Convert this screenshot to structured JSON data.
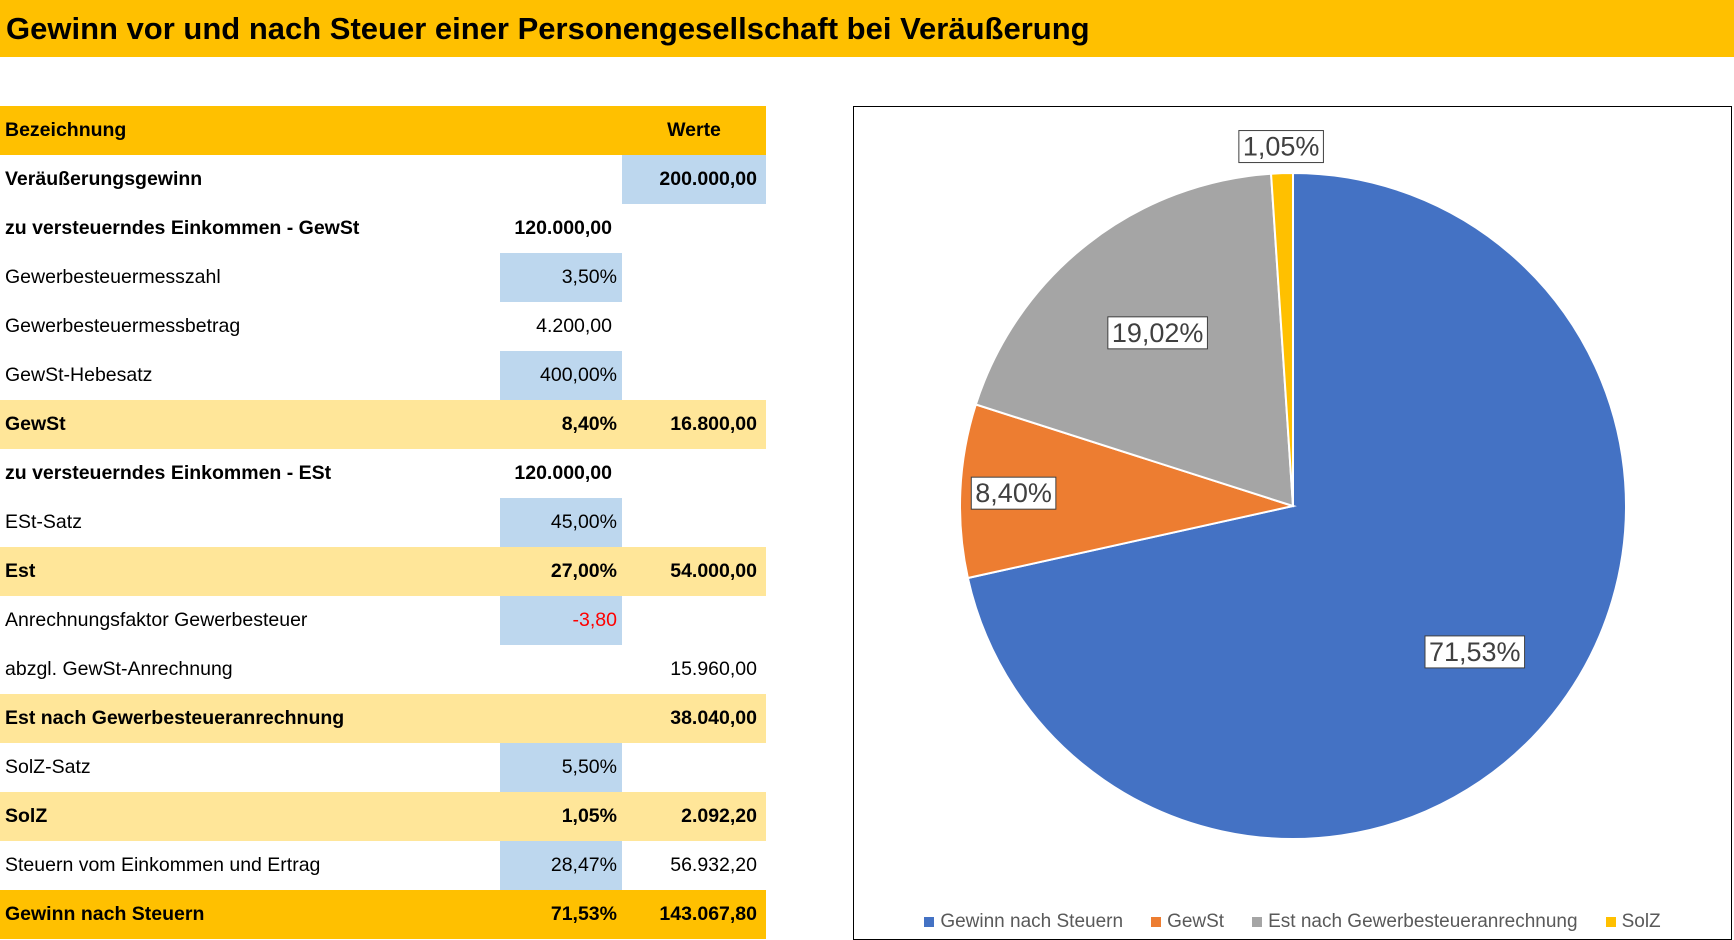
{
  "title": "Gewinn vor und nach Steuer einer Personengesellschaft bei Veräußerung",
  "table": {
    "header": {
      "label": "Bezeichnung",
      "values": "Werte"
    },
    "rows": [
      {
        "label": "Veräußerungsgewinn",
        "c2": "",
        "c3": "200.000,00"
      },
      {
        "label": "zu versteuerndes Einkommen - GewSt",
        "c2": "120.000,00",
        "c3": ""
      },
      {
        "label": "Gewerbesteuermesszahl",
        "c2": "3,50%",
        "c3": ""
      },
      {
        "label": "Gewerbesteuermessbetrag",
        "c2": "4.200,00",
        "c3": ""
      },
      {
        "label": "GewSt-Hebesatz",
        "c2": "400,00%",
        "c3": ""
      },
      {
        "label": "GewSt",
        "c2": "8,40%",
        "c3": "16.800,00"
      },
      {
        "label": "zu versteuerndes Einkommen - ESt",
        "c2": "120.000,00",
        "c3": ""
      },
      {
        "label": "ESt-Satz",
        "c2": "45,00%",
        "c3": ""
      },
      {
        "label": "Est",
        "c2": "27,00%",
        "c3": "54.000,00"
      },
      {
        "label": "Anrechnungsfaktor Gewerbesteuer",
        "c2": "-3,80",
        "c3": ""
      },
      {
        "label": "abzgl. GewSt-Anrechnung",
        "c2": "",
        "c3": "15.960,00"
      },
      {
        "label": "Est nach Gewerbesteueranrechnung",
        "c2": "",
        "c3": "38.040,00"
      },
      {
        "label": "SolZ-Satz",
        "c2": "5,50%",
        "c3": ""
      },
      {
        "label": "SolZ",
        "c2": "1,05%",
        "c3": "2.092,20"
      },
      {
        "label": "Steuern vom Einkommen und Ertrag",
        "c2": "28,47%",
        "c3": "56.932,20"
      },
      {
        "label": "Gewinn nach Steuern",
        "c2": "71,53%",
        "c3": "143.067,80"
      }
    ]
  },
  "chart_data": {
    "type": "pie",
    "categories": [
      "Gewinn nach Steuern",
      "GewSt",
      "Est nach Gewerbesteueranrechnung",
      "SolZ"
    ],
    "values": [
      71.53,
      8.4,
      19.02,
      1.05
    ],
    "labels": [
      "71,53%",
      "8,40%",
      "19,02%",
      "1,05%"
    ],
    "colors": [
      "#4472C4",
      "#ED7D31",
      "#A5A5A5",
      "#FFC000"
    ],
    "legend": "bottom"
  }
}
